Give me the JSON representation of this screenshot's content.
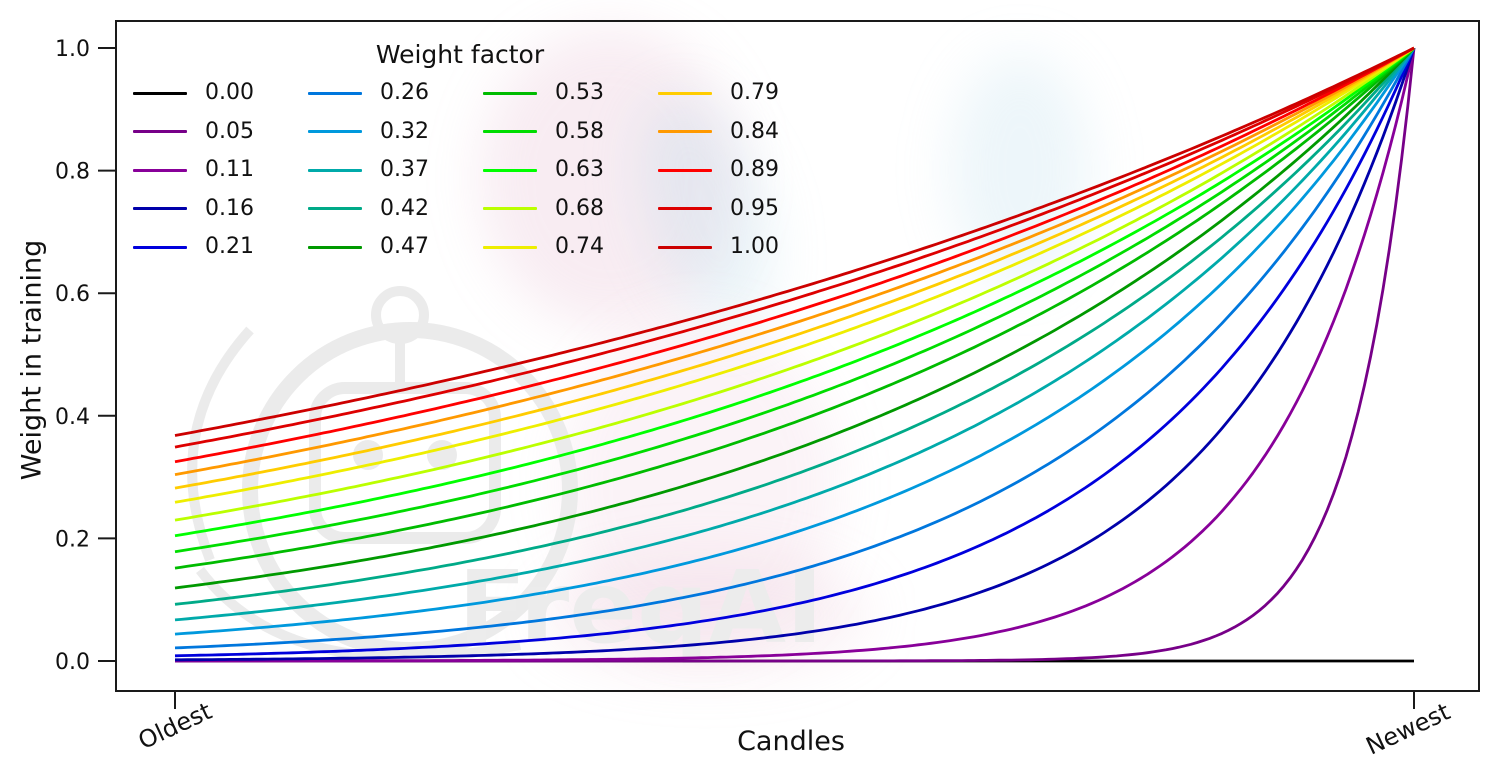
{
  "figure": {
    "background": "#ffffff"
  },
  "watermark": {
    "text": "FreqAI",
    "color": "#ececec"
  },
  "chart_data": {
    "type": "line",
    "title": "",
    "xlabel": "Candles",
    "ylabel": "Weight in training",
    "xticklabels": [
      "Oldest",
      "Newest"
    ],
    "yticks": [
      "0.0",
      "0.2",
      "0.4",
      "0.6",
      "0.8",
      "1.0"
    ],
    "xlim_data": [
      0,
      1
    ],
    "ylim": [
      0,
      1
    ],
    "grid": false,
    "legend": {
      "title": "Weight factor",
      "position": "upper left",
      "columns": 4,
      "frame": false
    },
    "colormap": "nipy_spectral",
    "formula": "weight(x) = exp(-(1 - x) / wf) with x from 0 (oldest candle) to 1 (newest candle); wf = 0 gives weight 0",
    "sample_x": [
      0,
      0.2,
      0.4,
      0.6,
      0.8,
      1.0
    ],
    "series": [
      {
        "label": "0.00",
        "weight_factor": 0.0,
        "color": "#000000",
        "values": [
          0,
          0,
          0,
          0,
          0,
          0
        ]
      },
      {
        "label": "0.05",
        "weight_factor": 0.05,
        "color": "#770088",
        "values": [
          0,
          0,
          0,
          0,
          0.018,
          1
        ]
      },
      {
        "label": "0.11",
        "weight_factor": 0.11,
        "color": "#880099",
        "values": [
          0,
          0.001,
          0.004,
          0.026,
          0.162,
          1
        ]
      },
      {
        "label": "0.16",
        "weight_factor": 0.16,
        "color": "#0000aa",
        "values": [
          0.002,
          0.007,
          0.024,
          0.082,
          0.287,
          1
        ]
      },
      {
        "label": "0.21",
        "weight_factor": 0.21,
        "color": "#0000dd",
        "values": [
          0.009,
          0.022,
          0.057,
          0.149,
          0.386,
          1
        ]
      },
      {
        "label": "0.26",
        "weight_factor": 0.26,
        "color": "#0077dd",
        "values": [
          0.021,
          0.046,
          0.099,
          0.214,
          0.463,
          1
        ]
      },
      {
        "label": "0.32",
        "weight_factor": 0.32,
        "color": "#0099dd",
        "values": [
          0.044,
          0.082,
          0.153,
          0.287,
          0.535,
          1
        ]
      },
      {
        "label": "0.37",
        "weight_factor": 0.37,
        "color": "#00aaaa",
        "values": [
          0.067,
          0.115,
          0.198,
          0.339,
          0.583,
          1
        ]
      },
      {
        "label": "0.42",
        "weight_factor": 0.42,
        "color": "#00aa88",
        "values": [
          0.093,
          0.149,
          0.239,
          0.386,
          0.621,
          1
        ]
      },
      {
        "label": "0.47",
        "weight_factor": 0.47,
        "color": "#009900",
        "values": [
          0.119,
          0.182,
          0.279,
          0.427,
          0.653,
          1
        ]
      },
      {
        "label": "0.53",
        "weight_factor": 0.53,
        "color": "#00bb00",
        "values": [
          0.152,
          0.221,
          0.322,
          0.47,
          0.686,
          1
        ]
      },
      {
        "label": "0.58",
        "weight_factor": 0.58,
        "color": "#00dd00",
        "values": [
          0.178,
          0.252,
          0.356,
          0.502,
          0.708,
          1
        ]
      },
      {
        "label": "0.63",
        "weight_factor": 0.63,
        "color": "#00ff00",
        "values": [
          0.204,
          0.281,
          0.386,
          0.53,
          0.728,
          1
        ]
      },
      {
        "label": "0.68",
        "weight_factor": 0.68,
        "color": "#bbff00",
        "values": [
          0.23,
          0.308,
          0.414,
          0.555,
          0.745,
          1
        ]
      },
      {
        "label": "0.74",
        "weight_factor": 0.74,
        "color": "#eeee00",
        "values": [
          0.259,
          0.339,
          0.444,
          0.582,
          0.763,
          1
        ]
      },
      {
        "label": "0.79",
        "weight_factor": 0.79,
        "color": "#ffcc00",
        "values": [
          0.282,
          0.363,
          0.468,
          0.603,
          0.776,
          1
        ]
      },
      {
        "label": "0.84",
        "weight_factor": 0.84,
        "color": "#ff9900",
        "values": [
          0.304,
          0.386,
          0.49,
          0.621,
          0.788,
          1
        ]
      },
      {
        "label": "0.89",
        "weight_factor": 0.89,
        "color": "#ff0000",
        "values": [
          0.325,
          0.407,
          0.51,
          0.638,
          0.799,
          1
        ]
      },
      {
        "label": "0.95",
        "weight_factor": 0.95,
        "color": "#dd0000",
        "values": [
          0.349,
          0.431,
          0.532,
          0.656,
          0.81,
          1
        ]
      },
      {
        "label": "1.00",
        "weight_factor": 1.0,
        "color": "#cc0000",
        "values": [
          0.368,
          0.449,
          0.549,
          0.67,
          0.819,
          1
        ]
      }
    ]
  }
}
